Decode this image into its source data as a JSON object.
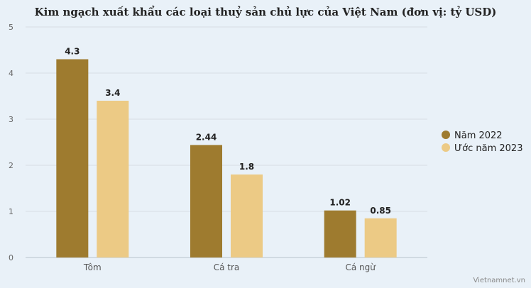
{
  "chart_data": {
    "type": "bar",
    "title": "Kim ngạch xuất khẩu các loại thuỷ sản chủ lực của Việt Nam (đơn vị: tỷ USD)",
    "categories": [
      "Tôm",
      "Cá tra",
      "Cá ngừ"
    ],
    "series": [
      {
        "name": "Năm 2022",
        "values": [
          4.3,
          2.44,
          1.02
        ],
        "labels": [
          "4.3",
          "2.44",
          "1.02"
        ],
        "color": "#9e7b2f"
      },
      {
        "name": "Ước năm 2023",
        "values": [
          3.4,
          1.8,
          0.85
        ],
        "labels": [
          "3.4",
          "1.8",
          "0.85"
        ],
        "color": "#ecca85"
      }
    ],
    "ylim": [
      0,
      5
    ],
    "yticks": [
      "0",
      "1",
      "2",
      "3",
      "4",
      "5"
    ],
    "grid": true,
    "legend_position": "right"
  },
  "watermark": "Vietnamnet.vn"
}
